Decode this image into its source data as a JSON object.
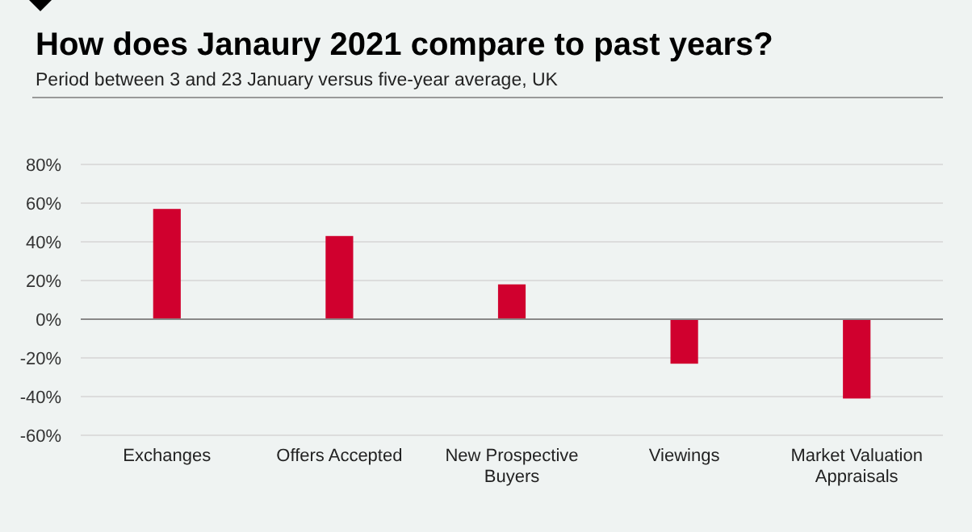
{
  "chart_data": {
    "type": "bar",
    "title": "How does Janaury 2021 compare to past years?",
    "subtitle": "Period between 3 and 23 January versus five-year average, UK",
    "categories": [
      "Exchanges",
      "Offers Accepted",
      "New Prospective Buyers",
      "Viewings",
      "Market Valuation Appraisals"
    ],
    "values": [
      57,
      43,
      18,
      -23,
      -41
    ],
    "color": "#d0002e",
    "ylim": [
      -60,
      80
    ],
    "yticks": [
      {
        "value": -60,
        "label": "-60%"
      },
      {
        "value": -40,
        "label": "-40%"
      },
      {
        "value": -20,
        "label": "-20%"
      },
      {
        "value": 0,
        "label": "0%"
      },
      {
        "value": 20,
        "label": "20%"
      },
      {
        "value": 40,
        "label": "40%"
      },
      {
        "value": 60,
        "label": "60%"
      },
      {
        "value": 80,
        "label": "80%"
      }
    ],
    "grid": "y"
  }
}
